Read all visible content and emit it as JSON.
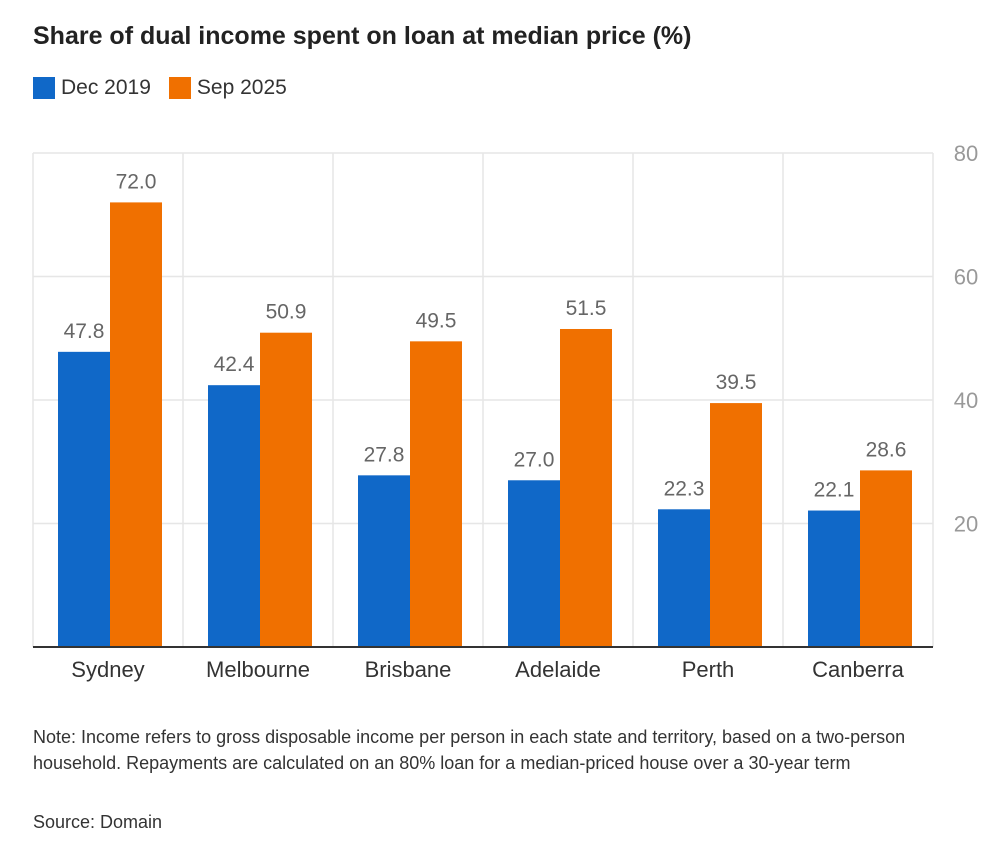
{
  "title": "Share of dual income spent on loan at median price (%)",
  "note": "Note: Income refers to gross disposable income per person in each state and territory, based on a two-person household. Repayments are calculated on an 80% loan for a median-priced house over a 30-year term",
  "source": "Source: Domain",
  "colors": {
    "series_1": "#1068c8",
    "series_2": "#f07000",
    "grid": "#e6e6e6",
    "axis": "#333333",
    "tick_label": "#999999",
    "data_label": "#666666"
  },
  "chart_data": {
    "type": "bar",
    "title": "Share of dual income spent on loan at median price (%)",
    "xlabel": "",
    "ylabel": "",
    "categories": [
      "Sydney",
      "Melbourne",
      "Brisbane",
      "Adelaide",
      "Perth",
      "Canberra"
    ],
    "series": [
      {
        "name": "Dec 2019",
        "values": [
          47.8,
          42.4,
          27.8,
          27.0,
          22.3,
          22.1
        ]
      },
      {
        "name": "Sep 2025",
        "values": [
          72.0,
          50.9,
          49.5,
          51.5,
          39.5,
          28.6
        ]
      }
    ],
    "ylim": [
      0,
      80
    ],
    "yticks": [
      20,
      40,
      60,
      80
    ],
    "y_axis_side": "right",
    "grid": true,
    "legend_position": "top-left",
    "value_decimals": 1
  }
}
